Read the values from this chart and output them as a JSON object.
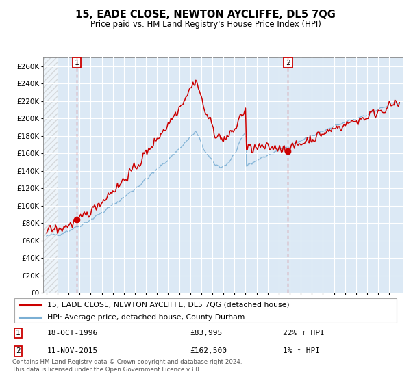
{
  "title": "15, EADE CLOSE, NEWTON AYCLIFFE, DL5 7QG",
  "subtitle": "Price paid vs. HM Land Registry's House Price Index (HPI)",
  "legend_line1": "15, EADE CLOSE, NEWTON AYCLIFFE, DL5 7QG (detached house)",
  "legend_line2": "HPI: Average price, detached house, County Durham",
  "transaction1_date": "18-OCT-1996",
  "transaction1_price": 83995,
  "transaction1_label": "22% ↑ HPI",
  "transaction2_date": "11-NOV-2015",
  "transaction2_price": 162500,
  "transaction2_label": "1% ↑ HPI",
  "footer": "Contains HM Land Registry data © Crown copyright and database right 2024.\nThis data is licensed under the Open Government Licence v3.0.",
  "hpi_color": "#7bafd4",
  "price_color": "#cc0000",
  "marker_color": "#cc0000",
  "vline_color": "#cc0000",
  "plot_bg": "#dce9f5",
  "ylim": [
    0,
    270000
  ],
  "ytick_step": 20000
}
